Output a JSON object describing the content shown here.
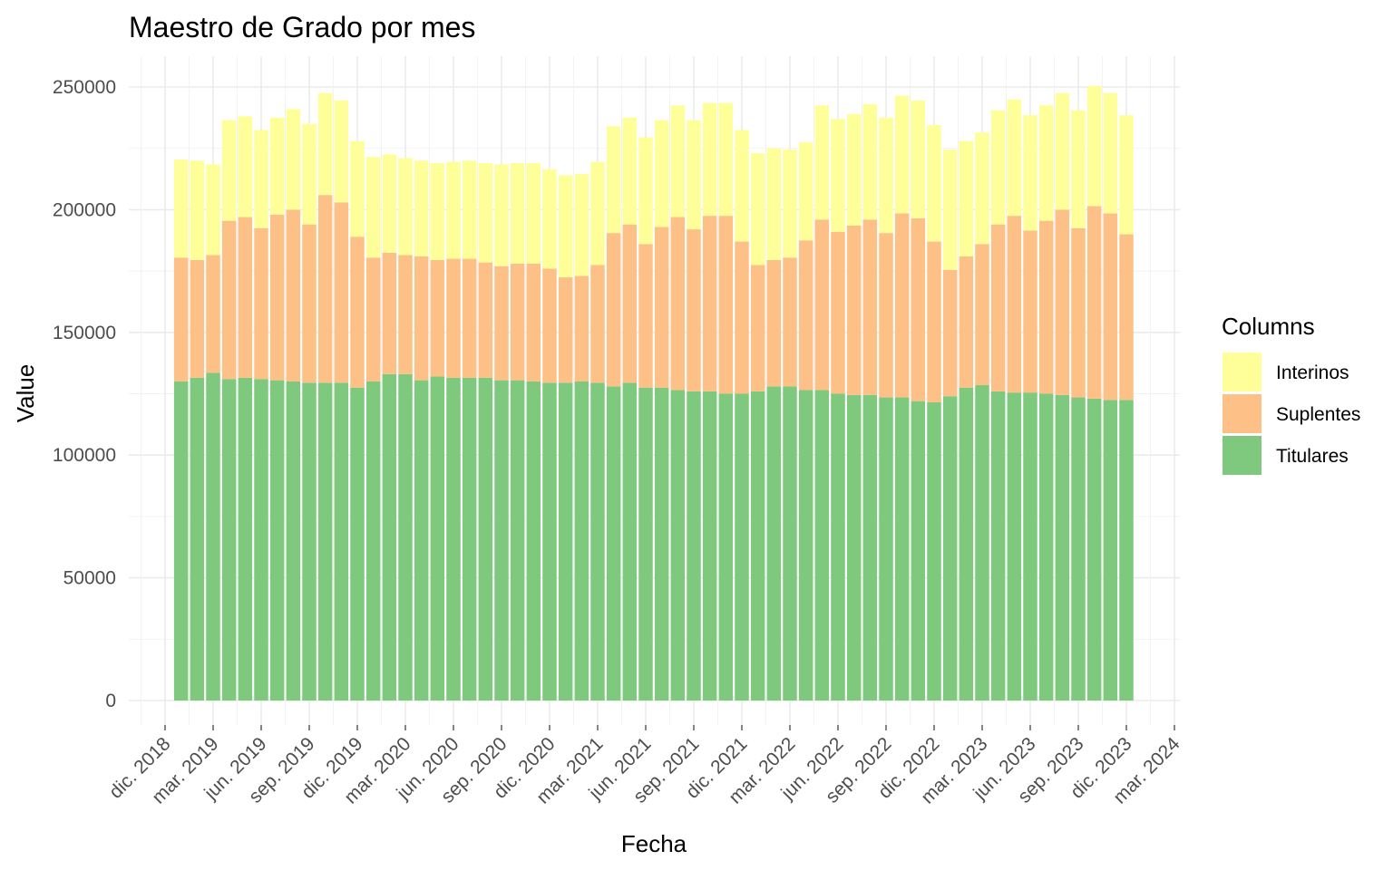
{
  "chart_data": {
    "type": "bar",
    "stacked": true,
    "title": "Maestro de Grado por mes",
    "xlabel": "Fecha",
    "ylabel": "Value",
    "ylim": [
      0,
      250000
    ],
    "y_ticks": [
      0,
      50000,
      100000,
      150000,
      200000,
      250000
    ],
    "x_ticks": [
      "dic. 2018",
      "mar. 2019",
      "jun. 2019",
      "sep. 2019",
      "dic. 2019",
      "mar. 2020",
      "jun. 2020",
      "sep. 2020",
      "dic. 2020",
      "mar. 2021",
      "jun. 2021",
      "sep. 2021",
      "dic. 2021",
      "mar. 2022",
      "jun. 2022",
      "sep. 2022",
      "dic. 2022",
      "mar. 2023",
      "jun. 2023",
      "sep. 2023",
      "dic. 2023",
      "mar. 2024"
    ],
    "grid": true,
    "legend": {
      "title": "Columns",
      "position": "right",
      "entries": [
        "Interinos",
        "Suplentes",
        "Titulares"
      ]
    },
    "categories": [
      "2019-01",
      "2019-02",
      "2019-03",
      "2019-04",
      "2019-05",
      "2019-06",
      "2019-07",
      "2019-08",
      "2019-09",
      "2019-10",
      "2019-11",
      "2019-12",
      "2020-01",
      "2020-02",
      "2020-03",
      "2020-04",
      "2020-05",
      "2020-06",
      "2020-07",
      "2020-08",
      "2020-09",
      "2020-10",
      "2020-11",
      "2020-12",
      "2021-01",
      "2021-02",
      "2021-03",
      "2021-04",
      "2021-05",
      "2021-06",
      "2021-07",
      "2021-08",
      "2021-09",
      "2021-10",
      "2021-11",
      "2021-12",
      "2022-01",
      "2022-02",
      "2022-03",
      "2022-04",
      "2022-05",
      "2022-06",
      "2022-07",
      "2022-08",
      "2022-09",
      "2022-10",
      "2022-11",
      "2022-12",
      "2023-01",
      "2023-02",
      "2023-03",
      "2023-04",
      "2023-05",
      "2023-06",
      "2023-07",
      "2023-08",
      "2023-09",
      "2023-10",
      "2023-11",
      "2023-12"
    ],
    "series": [
      {
        "name": "Titulares",
        "color": "#7fc97f",
        "values": [
          130000,
          131500,
          133500,
          131000,
          131500,
          131000,
          130500,
          130000,
          129500,
          129500,
          129500,
          127500,
          130000,
          133000,
          133000,
          130500,
          132000,
          131500,
          131500,
          131500,
          130500,
          130500,
          130000,
          129500,
          129500,
          130000,
          129500,
          128000,
          129500,
          127500,
          127500,
          126500,
          126000,
          126000,
          125000,
          125000,
          126000,
          128000,
          128000,
          126500,
          126500,
          125000,
          124500,
          124500,
          123500,
          123500,
          122000,
          121500,
          124000,
          127500,
          128500,
          126000,
          125500,
          125500,
          125000,
          124500,
          123500,
          123000,
          122500,
          122500
        ]
      },
      {
        "name": "Suplentes",
        "color": "#fdc086",
        "values": [
          50500,
          48000,
          48000,
          64500,
          65500,
          61500,
          67500,
          70000,
          64500,
          76500,
          73500,
          61500,
          50500,
          49500,
          48500,
          50500,
          47500,
          48500,
          48500,
          47000,
          46500,
          47500,
          48000,
          46500,
          43000,
          43000,
          48000,
          62500,
          64500,
          58500,
          65500,
          70500,
          66000,
          71500,
          72500,
          62000,
          51500,
          51500,
          52500,
          61000,
          69500,
          66000,
          69000,
          71500,
          67000,
          75000,
          74500,
          65500,
          51500,
          53500,
          57500,
          68000,
          72000,
          66000,
          70500,
          75500,
          69000,
          78500,
          76000,
          67500
        ]
      },
      {
        "name": "Interinos",
        "color": "#ffff99",
        "values": [
          40000,
          40500,
          37000,
          41000,
          41000,
          40000,
          39500,
          41000,
          41000,
          41500,
          41500,
          39000,
          41000,
          40000,
          39500,
          39000,
          39500,
          39500,
          40000,
          40500,
          41500,
          41000,
          41000,
          40500,
          41500,
          41500,
          42000,
          43500,
          43500,
          43500,
          43500,
          45500,
          44500,
          46000,
          46000,
          45500,
          45500,
          45500,
          44000,
          40000,
          46500,
          46000,
          45500,
          47000,
          47000,
          48000,
          48000,
          47500,
          49000,
          47000,
          45500,
          46500,
          47500,
          47000,
          47000,
          47500,
          48000,
          49000,
          49000,
          48500
        ]
      }
    ]
  }
}
